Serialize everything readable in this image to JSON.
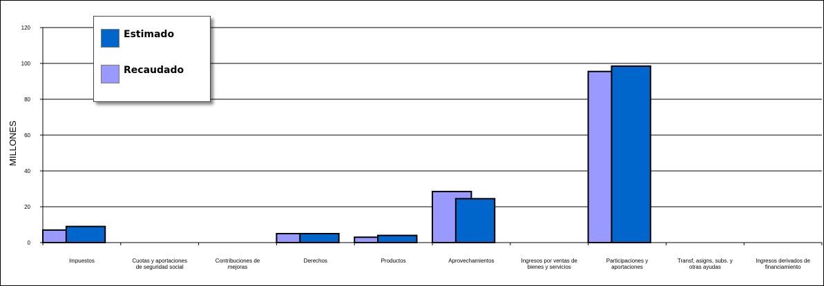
{
  "chart_data": {
    "type": "bar",
    "ylabel": "MILLONES",
    "ylim": [
      0,
      120
    ],
    "yticks": [
      0,
      20,
      40,
      60,
      80,
      100,
      120
    ],
    "grid": true,
    "legend_placement": "top-left",
    "categories": [
      [
        "Impuestos"
      ],
      [
        "Cuotas y aportaciones",
        "de seguridad social"
      ],
      [
        "Contribuciones de",
        "mejoras"
      ],
      [
        "Derechos"
      ],
      [
        "Productos"
      ],
      [
        "Aprovechamientos"
      ],
      [
        "Ingresos por ventas de",
        "bienes y servicios"
      ],
      [
        "Participaciones y",
        "aportaciones"
      ],
      [
        "Transf, asigns, subs. y",
        "otras ayudas"
      ],
      [
        "Ingresos derivados de",
        "financiamiento"
      ]
    ],
    "series": [
      {
        "name": "Recaudado",
        "color": "#9999FF",
        "values": [
          7,
          0,
          0,
          5,
          3,
          28.5,
          0,
          95.5,
          0,
          0
        ]
      },
      {
        "name": "Estimado",
        "color": "#0066CC",
        "values": [
          9,
          0,
          0,
          5,
          4,
          24.5,
          0,
          98.5,
          0,
          0
        ]
      }
    ]
  },
  "legend": {
    "items": [
      {
        "label": "Estimado",
        "color": "#0066CC"
      },
      {
        "label": "Recaudado",
        "color": "#9999FF"
      }
    ]
  }
}
